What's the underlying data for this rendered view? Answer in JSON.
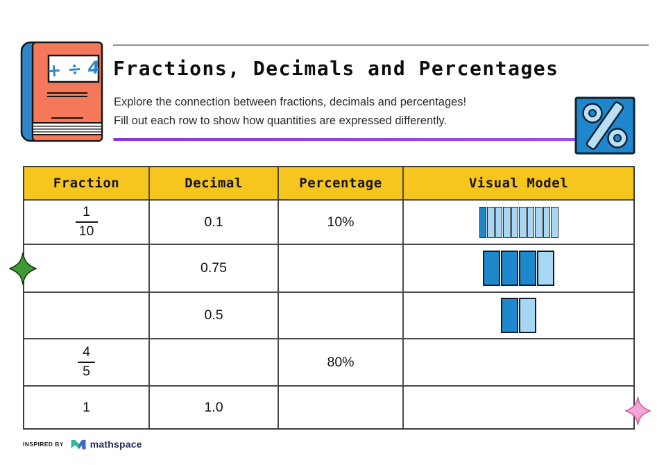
{
  "page": {
    "title": "Fractions, Decimals and Percentages",
    "subtitle_line1": "Explore the connection between fractions, decimals and percentages!",
    "subtitle_line2": "Fill out each row to show how quantities are expressed differently."
  },
  "book_icon": {
    "label": "+ ÷ 4"
  },
  "table": {
    "columns": [
      "Fraction",
      "Decimal",
      "Percentage",
      "Visual Model"
    ],
    "rows": [
      {
        "fraction": {
          "numerator": "1",
          "denominator": "10"
        },
        "decimal": "0.1",
        "percentage": "10%",
        "visual_model": {
          "type": "segment-bar",
          "segments": 10,
          "filled": 1
        }
      },
      {
        "fraction": null,
        "decimal": "0.75",
        "percentage": "",
        "visual_model": {
          "type": "segment-bar",
          "segments": 4,
          "filled": 3
        }
      },
      {
        "fraction": null,
        "decimal": "0.5",
        "percentage": "",
        "visual_model": {
          "type": "segment-bar",
          "segments": 2,
          "filled": 1
        }
      },
      {
        "fraction": {
          "numerator": "4",
          "denominator": "5"
        },
        "decimal": "",
        "percentage": "80%",
        "visual_model": null
      },
      {
        "fraction": {
          "whole": "1"
        },
        "decimal": "1.0",
        "percentage": "",
        "visual_model": null
      }
    ]
  },
  "footer": {
    "inspired_by": "INSPIRED BY",
    "brand": "mathspace"
  },
  "colors": {
    "header_yellow": "#F6C51E",
    "bar_dark_blue": "#1E87CE",
    "bar_light_blue": "#A8D7F3",
    "accent_purple": "#8B35E8",
    "book_cover": "#F4795B",
    "book_spine": "#2E86C8",
    "percent_icon_bg": "#1E87CE",
    "percent_icon_symbol": "#B9DFF7",
    "sparkle_green": "#3E9B33",
    "sparkle_pink": "#F2A5D2",
    "brand_navy": "#232E5C",
    "brand_teal": "#35B79E",
    "brand_blue": "#3F66CC"
  }
}
